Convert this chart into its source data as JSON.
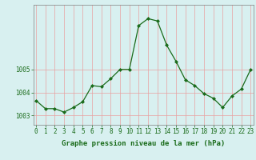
{
  "x": [
    0,
    1,
    2,
    3,
    4,
    5,
    6,
    7,
    8,
    9,
    10,
    11,
    12,
    13,
    14,
    15,
    16,
    17,
    18,
    19,
    20,
    21,
    22,
    23
  ],
  "y": [
    1003.65,
    1003.3,
    1003.3,
    1003.15,
    1003.35,
    1003.6,
    1004.3,
    1004.25,
    1004.6,
    1005.0,
    1005.0,
    1006.9,
    1007.2,
    1007.1,
    1006.05,
    1005.35,
    1004.55,
    1004.3,
    1003.95,
    1003.75,
    1003.35,
    1003.85,
    1004.15,
    1005.0
  ],
  "line_color": "#1a6b1a",
  "marker": "D",
  "marker_size": 2.0,
  "bg_color": "#d8f0f0",
  "grid_color": "#e8a0a0",
  "xlabel": "Graphe pression niveau de la mer (hPa)",
  "xlabel_color": "#1a6b1a",
  "yticks": [
    1003,
    1004,
    1005
  ],
  "ylim": [
    1002.6,
    1007.8
  ],
  "xlim": [
    -0.3,
    23.3
  ],
  "axis_color": "#808080",
  "tick_color": "#1a6b1a",
  "tick_fontsize": 5.5,
  "xlabel_fontsize": 6.5,
  "linewidth": 0.9
}
